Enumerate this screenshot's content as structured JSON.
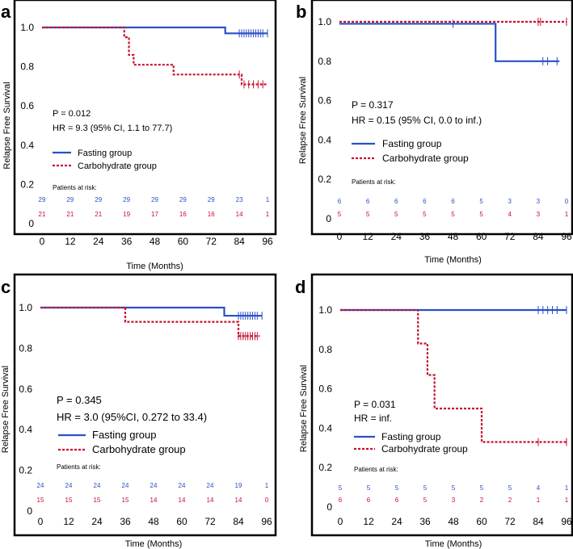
{
  "chart_data": [
    {
      "panel": "a",
      "type": "kaplan-meier",
      "xlabel": "Time (Months)",
      "ylabel": "Relapse Free Survival",
      "xlim": [
        0,
        96
      ],
      "ylim": [
        0,
        1.0
      ],
      "xticks": [
        "0",
        "12",
        "24",
        "36",
        "48",
        "60",
        "72",
        "84",
        "96"
      ],
      "yticks": [
        "0",
        "0.2",
        "0.4",
        "0.6",
        "0.8",
        "1.0"
      ],
      "stats": {
        "p": "P = 0.012",
        "hr": "HR = 9.3 (95% CI, 1.1 to 77.7)"
      },
      "risk_title": "Patients at risk:",
      "risk_times": [
        0,
        12,
        24,
        36,
        48,
        60,
        72,
        84,
        96
      ],
      "series": [
        {
          "name": "Fasting group",
          "color": "#2a50c8",
          "dash": "solid",
          "steps": [
            [
              0,
              1.0
            ],
            [
              78,
              0.97
            ]
          ],
          "end": 96,
          "censors": [
            [
              84,
              0.97
            ],
            [
              85,
              0.97
            ],
            [
              86,
              0.97
            ],
            [
              87,
              0.97
            ],
            [
              88,
              0.97
            ],
            [
              89,
              0.97
            ],
            [
              90,
              0.97
            ],
            [
              91,
              0.97
            ],
            [
              92,
              0.97
            ],
            [
              93,
              0.97
            ],
            [
              94,
              0.97
            ],
            [
              96,
              0.97
            ]
          ],
          "at_risk": [
            "29",
            "29",
            "29",
            "29",
            "29",
            "29",
            "29",
            "23",
            "1"
          ]
        },
        {
          "name": "Carbohydrate group",
          "color": "#c8102e",
          "dash": "dotted",
          "steps": [
            [
              0,
              1.0
            ],
            [
              35,
              0.95
            ],
            [
              37,
              0.86
            ],
            [
              39,
              0.81
            ],
            [
              56,
              0.76
            ],
            [
              85,
              0.71
            ]
          ],
          "end": 96,
          "censors": [
            [
              84,
              0.76
            ],
            [
              86,
              0.71
            ],
            [
              88,
              0.71
            ],
            [
              90,
              0.71
            ],
            [
              92,
              0.71
            ],
            [
              94,
              0.71
            ]
          ],
          "at_risk": [
            "21",
            "21",
            "21",
            "19",
            "17",
            "16",
            "16",
            "14",
            "1"
          ]
        }
      ]
    },
    {
      "panel": "b",
      "type": "kaplan-meier",
      "xlabel": "Time (Months)",
      "ylabel": "Relapse Free Survival",
      "xlim": [
        0,
        96
      ],
      "ylim": [
        0,
        1.0
      ],
      "xticks": [
        "0",
        "12",
        "24",
        "36",
        "48",
        "60",
        "72",
        "84",
        "96"
      ],
      "yticks": [
        "0",
        "0.2",
        "0.4",
        "0.6",
        "0.8",
        "1.0"
      ],
      "stats": {
        "p": "P = 0.317",
        "hr": "HR = 0.15 (95% CI, 0.0 to inf.)"
      },
      "risk_title": "Patients at risk:",
      "risk_times": [
        0,
        12,
        24,
        36,
        48,
        60,
        72,
        84,
        96
      ],
      "series": [
        {
          "name": "Fasting group",
          "color": "#2a50c8",
          "dash": "solid",
          "steps": [
            [
              0,
              0.99
            ],
            [
              66,
              0.8
            ]
          ],
          "end": 93,
          "censors": [
            [
              48,
              0.99
            ],
            [
              86,
              0.8
            ],
            [
              88,
              0.8
            ],
            [
              92,
              0.8
            ]
          ],
          "at_risk": [
            "6",
            "6",
            "6",
            "6",
            "6",
            "5",
            "3",
            "3",
            "0"
          ]
        },
        {
          "name": "Carbohydrate group",
          "color": "#c8102e",
          "dash": "dotted",
          "steps": [
            [
              0,
              1.0
            ]
          ],
          "end": 96,
          "censors": [
            [
              84,
              1.0
            ],
            [
              85,
              1.0
            ],
            [
              96,
              1.0
            ]
          ],
          "at_risk": [
            "5",
            "5",
            "5",
            "5",
            "5",
            "5",
            "4",
            "3",
            "1"
          ]
        }
      ]
    },
    {
      "panel": "c",
      "type": "kaplan-meier",
      "xlabel": "Time (Months)",
      "ylabel": "Relapse Free Survival",
      "xlim": [
        0,
        96
      ],
      "ylim": [
        0,
        1.0
      ],
      "xticks": [
        "0",
        "12",
        "24",
        "36",
        "48",
        "60",
        "72",
        "84",
        "96"
      ],
      "yticks": [
        "0",
        "0.2",
        "0.4",
        "0.6",
        "0.8",
        "1.0"
      ],
      "stats": {
        "p": "P = 0.345",
        "hr": "HR = 3.0 (95%CI, 0.272 to 33.4)"
      },
      "risk_title": "Patients at risk:",
      "risk_times": [
        0,
        12,
        24,
        36,
        48,
        60,
        72,
        84,
        96
      ],
      "series": [
        {
          "name": "Fasting group",
          "color": "#2a50c8",
          "dash": "solid",
          "steps": [
            [
              0,
              1.0
            ],
            [
              78,
              0.96
            ]
          ],
          "end": 94,
          "censors": [
            [
              84,
              0.96
            ],
            [
              85,
              0.96
            ],
            [
              86,
              0.96
            ],
            [
              87,
              0.96
            ],
            [
              88,
              0.96
            ],
            [
              89,
              0.96
            ],
            [
              90,
              0.96
            ],
            [
              91,
              0.96
            ],
            [
              92,
              0.96
            ],
            [
              94,
              0.96
            ]
          ],
          "at_risk": [
            "24",
            "24",
            "24",
            "24",
            "24",
            "24",
            "24",
            "19",
            "1"
          ]
        },
        {
          "name": "Carbohydrate group",
          "color": "#c8102e",
          "dash": "dotted",
          "steps": [
            [
              0,
              1.0
            ],
            [
              36,
              0.93
            ],
            [
              84,
              0.86
            ]
          ],
          "end": 93,
          "censors": [
            [
              84,
              0.86
            ],
            [
              85,
              0.86
            ],
            [
              86,
              0.86
            ],
            [
              87,
              0.86
            ],
            [
              88,
              0.86
            ],
            [
              89,
              0.86
            ],
            [
              90,
              0.86
            ],
            [
              91,
              0.86
            ],
            [
              92,
              0.86
            ]
          ],
          "at_risk": [
            "15",
            "15",
            "15",
            "15",
            "14",
            "14",
            "14",
            "14",
            "0"
          ]
        }
      ]
    },
    {
      "panel": "d",
      "type": "kaplan-meier",
      "xlabel": "Time (Months)",
      "ylabel": "Relapse Free Survival",
      "xlim": [
        0,
        96
      ],
      "ylim": [
        0,
        1.0
      ],
      "xticks": [
        "0",
        "12",
        "24",
        "36",
        "48",
        "60",
        "72",
        "84",
        "96"
      ],
      "yticks": [
        "0",
        "0.2",
        "0.4",
        "0.6",
        "0.8",
        "1.0"
      ],
      "stats": {
        "p": "P = 0.031",
        "hr": "HR = inf."
      },
      "risk_title": "Patients at risk:",
      "risk_times": [
        0,
        12,
        24,
        36,
        48,
        60,
        72,
        84,
        96
      ],
      "series": [
        {
          "name": "Fasting group",
          "color": "#2a50c8",
          "dash": "solid",
          "steps": [
            [
              0,
              1.0
            ]
          ],
          "end": 96,
          "censors": [
            [
              84,
              1.0
            ],
            [
              86,
              1.0
            ],
            [
              88,
              1.0
            ],
            [
              90,
              1.0
            ],
            [
              92,
              1.0
            ],
            [
              96,
              1.0
            ]
          ],
          "at_risk": [
            "5",
            "5",
            "5",
            "5",
            "5",
            "5",
            "5",
            "4",
            "1"
          ]
        },
        {
          "name": "Carbohydrate group",
          "color": "#c8102e",
          "dash": "dotted",
          "steps": [
            [
              0,
              1.0
            ],
            [
              33,
              0.83
            ],
            [
              37,
              0.67
            ],
            [
              40,
              0.5
            ],
            [
              60,
              0.33
            ]
          ],
          "end": 96,
          "censors": [
            [
              84,
              0.33
            ],
            [
              96,
              0.33
            ]
          ],
          "at_risk": [
            "6",
            "6",
            "6",
            "5",
            "3",
            "2",
            "2",
            "1",
            "1"
          ]
        }
      ]
    }
  ]
}
